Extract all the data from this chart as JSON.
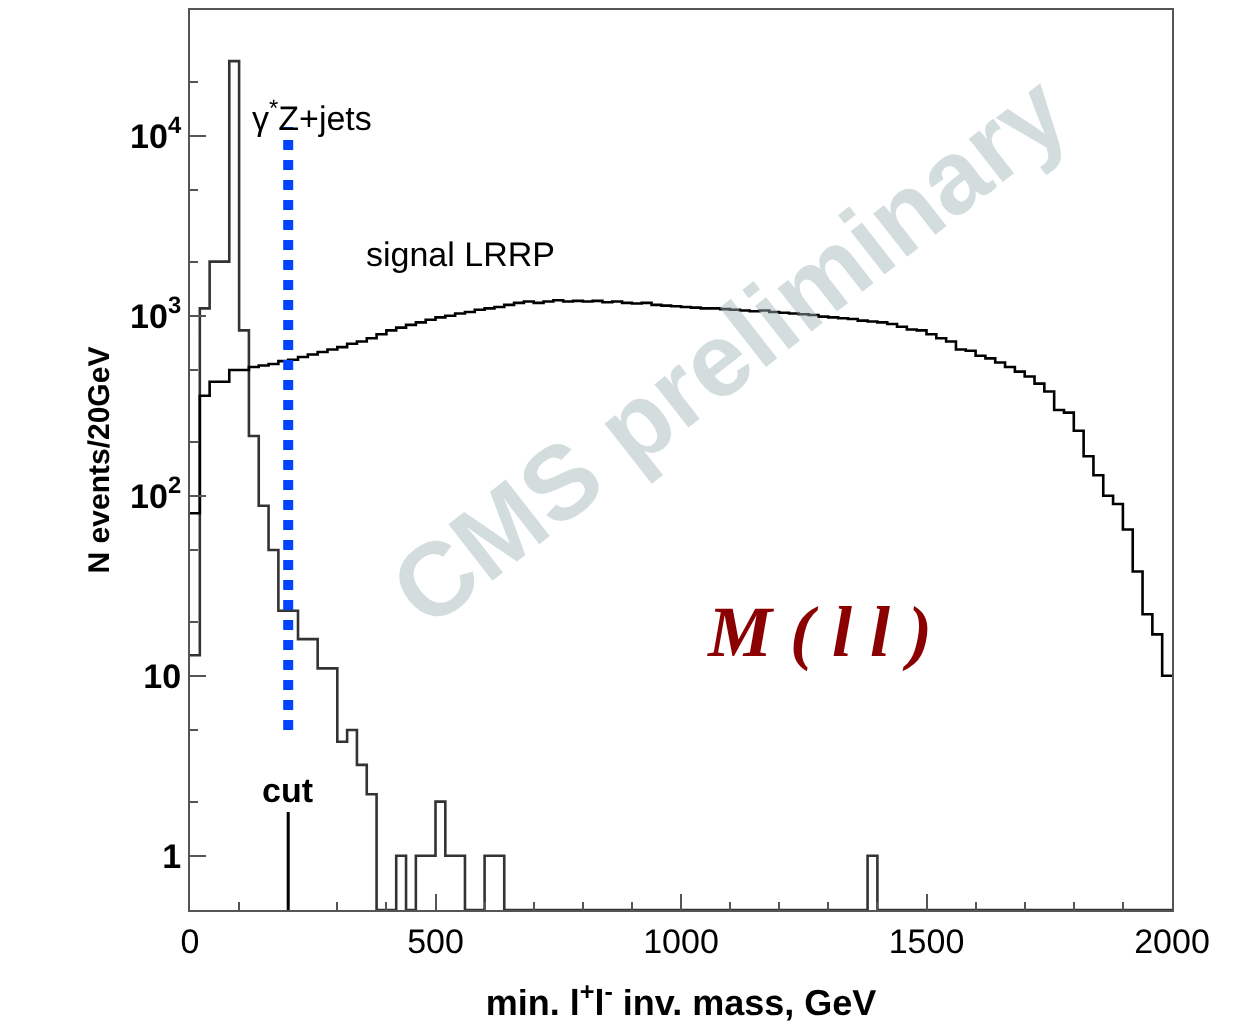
{
  "chart_data": {
    "type": "histogram",
    "xlabel": "min. l$^{+}$l$^{-}$ inv. mass, GeV",
    "ylabel": "N events/20GeV",
    "bins": [
      0,
      20,
      40,
      60,
      80,
      100,
      120,
      140,
      160,
      180,
      200,
      220,
      240,
      260,
      280,
      300,
      320,
      340,
      360,
      380,
      400,
      420,
      440,
      460,
      480,
      500,
      520,
      540,
      560,
      580,
      600,
      620,
      640,
      660,
      680,
      700,
      720,
      740,
      760,
      780,
      800,
      820,
      840,
      860,
      880,
      900,
      920,
      940,
      960,
      980,
      1000,
      1020,
      1040,
      1060,
      1080,
      1100,
      1120,
      1140,
      1160,
      1180,
      1200,
      1220,
      1240,
      1260,
      1280,
      1300,
      1320,
      1340,
      1360,
      1380,
      1400,
      1420,
      1440,
      1460,
      1480,
      1500,
      1520,
      1540,
      1560,
      1580,
      1600,
      1620,
      1640,
      1660,
      1680,
      1700,
      1720,
      1740,
      1760,
      1780,
      1800,
      1820,
      1840,
      1860,
      1880,
      1900,
      1920,
      1940,
      1960,
      1980,
      2000
    ],
    "series": [
      {
        "name": "γ$^{*}$Z+jets",
        "color": "#333333",
        "values": [
          13,
          1100,
          2000,
          2000,
          26000,
          830,
          215,
          88,
          50,
          23,
          23,
          16,
          16,
          11,
          11,
          4.3,
          5,
          3.2,
          2.2,
          null,
          null,
          1,
          null,
          1,
          1,
          2,
          1,
          1,
          null,
          null,
          1,
          1,
          null,
          null,
          null,
          null,
          null,
          null,
          null,
          null,
          null,
          null,
          null,
          null,
          null,
          null,
          null,
          null,
          null,
          null,
          null,
          null,
          null,
          null,
          null,
          null,
          null,
          null,
          null,
          null,
          null,
          null,
          null,
          null,
          null,
          null,
          null,
          null,
          null,
          1,
          null,
          null,
          null,
          null,
          null,
          null,
          null,
          null,
          null,
          null,
          null,
          null,
          null,
          null,
          null,
          null,
          null,
          null,
          null,
          null,
          null,
          null,
          null,
          null,
          null,
          null,
          null,
          null,
          null,
          null
        ]
      },
      {
        "name": "signal LRRP",
        "color": "#000000",
        "values": [
          80,
          360,
          430,
          430,
          500,
          500,
          520,
          530,
          540,
          560,
          570,
          590,
          610,
          630,
          650,
          670,
          700,
          720,
          750,
          790,
          830,
          860,
          890,
          920,
          950,
          980,
          1000,
          1030,
          1050,
          1080,
          1100,
          1120,
          1150,
          1180,
          1200,
          1180,
          1200,
          1220,
          1200,
          1210,
          1200,
          1210,
          1190,
          1200,
          1180,
          1170,
          1180,
          1150,
          1140,
          1130,
          1120,
          1110,
          1100,
          1100,
          1090,
          1080,
          1070,
          1060,
          1070,
          1050,
          1040,
          1030,
          1020,
          1010,
          990,
          980,
          970,
          960,
          940,
          930,
          920,
          900,
          870,
          840,
          830,
          790,
          750,
          720,
          650,
          640,
          600,
          580,
          550,
          520,
          490,
          460,
          420,
          380,
          300,
          290,
          230,
          166,
          130,
          100,
          90,
          65,
          38,
          22,
          17,
          10
        ]
      }
    ],
    "ref_lines": [
      {
        "axis": "x",
        "value": 200,
        "label": "cut",
        "color": "#0044ff",
        "line_style": "dotted"
      }
    ],
    "annotations": [
      "M ( l l )",
      "CMS preliminary"
    ],
    "xlim": [
      0,
      2000
    ],
    "xticks": [
      0,
      500,
      1000,
      1500,
      2000
    ],
    "ylim": [
      0.5,
      50000
    ],
    "yticks": [
      1,
      10,
      {
        "value": 100,
        "label": "10$^{2}$"
      },
      {
        "value": 1000,
        "label": "10$^{3}$"
      },
      {
        "value": 10000,
        "label": "10$^{4}$"
      }
    ],
    "log": "y",
    "legend": false
  }
}
